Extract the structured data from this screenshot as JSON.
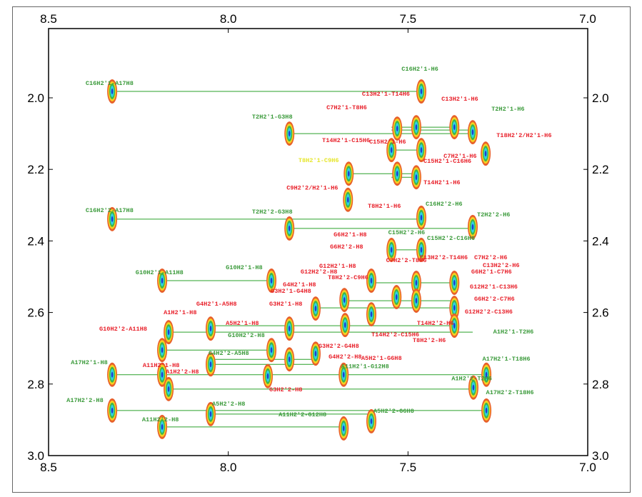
{
  "chart_data": {
    "type": "scatter",
    "subtype": "2D NMR contour spectrum",
    "xlim": [
      8.5,
      7.0
    ],
    "ylim": [
      1.85,
      3.0
    ],
    "x_ticks": [
      "8.5",
      "8.0",
      "7.5",
      "7.0"
    ],
    "y_ticks": [
      "2.0",
      "2.2",
      "2.4",
      "2.6",
      "2.8",
      "3.0"
    ],
    "x_tick_values": [
      8.5,
      8.0,
      7.5,
      7.0
    ],
    "y_tick_values": [
      2.0,
      2.2,
      2.4,
      2.6,
      2.8,
      3.0
    ],
    "grid": false,
    "colors": {
      "connect": "#2aa02a",
      "red": "#e8202a",
      "green": "#3a9a3a",
      "yellow": "#e6e62a",
      "contour": [
        "#e8602a",
        "#f5d020",
        "#3cb84a",
        "#30d0e0",
        "#1a3fd0"
      ]
    },
    "peaks": [
      [
        8.323,
        1.982
      ],
      [
        7.463,
        1.982
      ],
      [
        7.83,
        2.1
      ],
      [
        7.53,
        2.086
      ],
      [
        7.477,
        2.082
      ],
      [
        7.371,
        2.082
      ],
      [
        7.32,
        2.096
      ],
      [
        7.284,
        2.156
      ],
      [
        7.546,
        2.146
      ],
      [
        7.463,
        2.146
      ],
      [
        7.53,
        2.212
      ],
      [
        7.477,
        2.222
      ],
      [
        7.665,
        2.212
      ],
      [
        7.667,
        2.285
      ],
      [
        8.323,
        2.339
      ],
      [
        7.83,
        2.365
      ],
      [
        7.463,
        2.335
      ],
      [
        7.32,
        2.361
      ],
      [
        7.546,
        2.425
      ],
      [
        7.463,
        2.425
      ],
      [
        8.184,
        2.511
      ],
      [
        7.88,
        2.511
      ],
      [
        7.602,
        2.511
      ],
      [
        7.677,
        2.565
      ],
      [
        7.532,
        2.557
      ],
      [
        7.477,
        2.517
      ],
      [
        7.477,
        2.567
      ],
      [
        7.371,
        2.517
      ],
      [
        7.371,
        2.587
      ],
      [
        7.371,
        2.637
      ],
      [
        7.757,
        2.589
      ],
      [
        7.675,
        2.635
      ],
      [
        7.602,
        2.605
      ],
      [
        8.166,
        2.655
      ],
      [
        8.049,
        2.645
      ],
      [
        7.83,
        2.645
      ],
      [
        7.88,
        2.705
      ],
      [
        7.757,
        2.715
      ],
      [
        8.184,
        2.705
      ],
      [
        8.049,
        2.745
      ],
      [
        7.83,
        2.731
      ],
      [
        8.323,
        2.774
      ],
      [
        8.184,
        2.774
      ],
      [
        8.166,
        2.814
      ],
      [
        7.679,
        2.774
      ],
      [
        7.318,
        2.81
      ],
      [
        7.282,
        2.774
      ],
      [
        8.323,
        2.874
      ],
      [
        8.049,
        2.884
      ],
      [
        8.184,
        2.92
      ],
      [
        7.679,
        2.924
      ],
      [
        7.602,
        2.904
      ],
      [
        7.282,
        2.874
      ],
      [
        7.89,
        2.778
      ]
    ],
    "connections": [
      [
        1.982,
        8.323,
        7.463
      ],
      [
        2.1,
        7.83,
        7.32
      ],
      [
        2.082,
        7.546,
        7.371
      ],
      [
        2.09,
        7.546,
        7.32
      ],
      [
        2.146,
        7.546,
        7.463
      ],
      [
        2.212,
        7.665,
        7.477
      ],
      [
        2.222,
        7.546,
        7.477
      ],
      [
        2.339,
        8.323,
        7.463
      ],
      [
        2.365,
        7.83,
        7.32
      ],
      [
        2.425,
        7.546,
        7.463
      ],
      [
        2.511,
        8.184,
        7.88
      ],
      [
        2.517,
        7.602,
        7.371
      ],
      [
        2.567,
        7.677,
        7.371
      ],
      [
        2.587,
        7.757,
        7.371
      ],
      [
        2.637,
        8.049,
        7.371
      ],
      [
        2.655,
        8.166,
        7.32
      ],
      [
        2.705,
        8.184,
        7.88
      ],
      [
        2.731,
        8.049,
        7.757
      ],
      [
        2.745,
        8.049,
        7.757
      ],
      [
        2.774,
        8.323,
        7.282
      ],
      [
        2.814,
        8.166,
        7.318
      ],
      [
        2.874,
        8.323,
        7.282
      ],
      [
        2.884,
        8.049,
        7.602
      ],
      [
        2.92,
        8.184,
        7.679
      ]
    ],
    "annotations": [
      {
        "text": "C16H2'1-A17H8",
        "color": "green",
        "x": 8.397,
        "y": 1.964
      },
      {
        "text": "C16H2'1-H6",
        "color": "green",
        "x": 7.518,
        "y": 1.924
      },
      {
        "text": "T2H2'1-G3H8",
        "color": "green",
        "x": 7.934,
        "y": 2.058
      },
      {
        "text": "T2H2'1-H6",
        "color": "green",
        "x": 7.268,
        "y": 2.036
      },
      {
        "text": "C16H2'2-A17H8",
        "color": "green",
        "x": 8.397,
        "y": 2.319
      },
      {
        "text": "T2H2'2-G3H8",
        "color": "green",
        "x": 7.934,
        "y": 2.323
      },
      {
        "text": "C16H2'2-H6",
        "color": "green",
        "x": 7.451,
        "y": 2.301
      },
      {
        "text": "T2H2'2-H6",
        "color": "green",
        "x": 7.308,
        "y": 2.331
      },
      {
        "text": "C15H2'2-H6",
        "color": "green",
        "x": 7.555,
        "y": 2.381
      },
      {
        "text": "C15H2'2-C16H6",
        "color": "green",
        "x": 7.447,
        "y": 2.397
      },
      {
        "text": "G10H2'1-A11H8",
        "color": "green",
        "x": 8.258,
        "y": 2.493
      },
      {
        "text": "G10H2'1-H8",
        "color": "green",
        "x": 8.007,
        "y": 2.479
      },
      {
        "text": "G10H2'2-H8",
        "color": "green",
        "x": 8.001,
        "y": 2.669
      },
      {
        "text": "G4H2'2-A5H8",
        "color": "green",
        "x": 8.055,
        "y": 2.719
      },
      {
        "text": "A17H2'1-H8",
        "color": "green",
        "x": 8.438,
        "y": 2.745
      },
      {
        "text": "A17H2'2-H8",
        "color": "green",
        "x": 8.45,
        "y": 2.85
      },
      {
        "text": "A11H2'2-H8",
        "color": "green",
        "x": 8.24,
        "y": 2.904
      },
      {
        "text": "A5H2'2-H8",
        "color": "green",
        "x": 8.045,
        "y": 2.86
      },
      {
        "text": "A11H2'2-G12H8",
        "color": "green",
        "x": 7.86,
        "y": 2.89
      },
      {
        "text": "A11H2'1-G12H8",
        "color": "green",
        "x": 7.686,
        "y": 2.755
      },
      {
        "text": "A5H2'2-G6H8",
        "color": "green",
        "x": 7.596,
        "y": 2.88
      },
      {
        "text": "A1H2'1-T2H6",
        "color": "green",
        "x": 7.263,
        "y": 2.659
      },
      {
        "text": "A17H2'1-T18H6",
        "color": "green",
        "x": 7.293,
        "y": 2.735
      },
      {
        "text": "A1H2'2-T2H6",
        "color": "green",
        "x": 7.379,
        "y": 2.789
      },
      {
        "text": "A17H2'2-T18H6",
        "color": "green",
        "x": 7.283,
        "y": 2.828
      },
      {
        "text": "T8H2'1-C9H6",
        "color": "yellow",
        "x": 7.805,
        "y": 2.18
      },
      {
        "text": "C13H2'1-T14H6",
        "color": "red",
        "x": 7.628,
        "y": 1.994
      },
      {
        "text": "C7H2'1-T8H6",
        "color": "red",
        "x": 7.727,
        "y": 2.032
      },
      {
        "text": "C13H2'1-H6",
        "color": "red",
        "x": 7.407,
        "y": 2.008
      },
      {
        "text": "T18H2'2/H2'1-H6",
        "color": "red",
        "x": 7.254,
        "y": 2.11
      },
      {
        "text": "T14H2'1-C15H6",
        "color": "red",
        "x": 7.739,
        "y": 2.124
      },
      {
        "text": "C15H2'1-H6",
        "color": "red",
        "x": 7.608,
        "y": 2.128
      },
      {
        "text": "C7H2'1-H6",
        "color": "red",
        "x": 7.401,
        "y": 2.168
      },
      {
        "text": "C15H2'1-C16H6",
        "color": "red",
        "x": 7.457,
        "y": 2.182
      },
      {
        "text": "T14H2'1-H6",
        "color": "red",
        "x": 7.457,
        "y": 2.242
      },
      {
        "text": "C9H2'2/H2'1-H6",
        "color": "red",
        "x": 7.838,
        "y": 2.256
      },
      {
        "text": "T8H2'1-H6",
        "color": "red",
        "x": 7.612,
        "y": 2.307
      },
      {
        "text": "G6H2'1-H8",
        "color": "red",
        "x": 7.707,
        "y": 2.387
      },
      {
        "text": "G6H2'2-H8",
        "color": "red",
        "x": 7.717,
        "y": 2.421
      },
      {
        "text": "G12H2'1-H8",
        "color": "red",
        "x": 7.747,
        "y": 2.475
      },
      {
        "text": "G12H2'2-H8",
        "color": "red",
        "x": 7.799,
        "y": 2.491
      },
      {
        "text": "T8H2'2-C9H6",
        "color": "red",
        "x": 7.723,
        "y": 2.507
      },
      {
        "text": "C7H2'2-T8H6",
        "color": "red",
        "x": 7.561,
        "y": 2.459
      },
      {
        "text": "C13H2'2-T14H6",
        "color": "red",
        "x": 7.467,
        "y": 2.451
      },
      {
        "text": "C7H2'2-H6",
        "color": "red",
        "x": 7.316,
        "y": 2.451
      },
      {
        "text": "C13H2'2-H6",
        "color": "red",
        "x": 7.292,
        "y": 2.473
      },
      {
        "text": "G6H2'1-C7H6",
        "color": "red",
        "x": 7.324,
        "y": 2.491
      },
      {
        "text": "G12H2'1-C13H6",
        "color": "red",
        "x": 7.328,
        "y": 2.533
      },
      {
        "text": "G6H2'2-C7H6",
        "color": "red",
        "x": 7.316,
        "y": 2.567
      },
      {
        "text": "G12H2'2-C13H6",
        "color": "red",
        "x": 7.342,
        "y": 2.603
      },
      {
        "text": "T14H2'2-H6",
        "color": "red",
        "x": 7.475,
        "y": 2.635
      },
      {
        "text": "T8H2'2-H6",
        "color": "red",
        "x": 7.487,
        "y": 2.683
      },
      {
        "text": "T14H2'2-C15H6",
        "color": "red",
        "x": 7.602,
        "y": 2.667
      },
      {
        "text": "A5H2'1-G6H8",
        "color": "red",
        "x": 7.63,
        "y": 2.733
      },
      {
        "text": "G3H2'2-G4H8",
        "color": "red",
        "x": 7.749,
        "y": 2.699
      },
      {
        "text": "G4H2'2-H8",
        "color": "red",
        "x": 7.721,
        "y": 2.729
      },
      {
        "text": "G4H2'1-H8",
        "color": "red",
        "x": 7.848,
        "y": 2.527
      },
      {
        "text": "G3H2'1-G4H8",
        "color": "red",
        "x": 7.882,
        "y": 2.545
      },
      {
        "text": "G3H2'1-H8",
        "color": "red",
        "x": 7.886,
        "y": 2.581
      },
      {
        "text": "G4H2'1-A5H8",
        "color": "red",
        "x": 8.089,
        "y": 2.581
      },
      {
        "text": "A5H2'1-H8",
        "color": "red",
        "x": 8.007,
        "y": 2.635
      },
      {
        "text": "A1H2'1-H8",
        "color": "red",
        "x": 8.18,
        "y": 2.605
      },
      {
        "text": "G10H2'2-A11H8",
        "color": "red",
        "x": 8.359,
        "y": 2.651
      },
      {
        "text": "A11H2'1-H8",
        "color": "red",
        "x": 8.238,
        "y": 2.752
      },
      {
        "text": "A1H2'2-H8",
        "color": "red",
        "x": 8.174,
        "y": 2.77
      },
      {
        "text": "G3H2'2-H8",
        "color": "red",
        "x": 7.886,
        "y": 2.82
      }
    ]
  }
}
